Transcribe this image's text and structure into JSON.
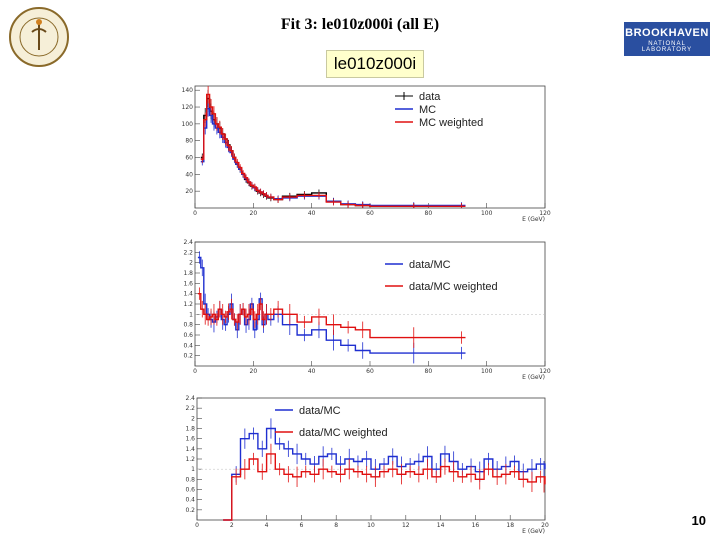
{
  "header": {
    "title": "Fit 3: le010z000i (all E)",
    "label_box": "le010z000i",
    "logo_bnl_line1": "BROOKHAVEN",
    "logo_bnl_line2": "NATIONAL LABORATORY",
    "page_number": "10"
  },
  "colors": {
    "data": "#000000",
    "mc": "#1f2fd0",
    "mc_weighted": "#e01010",
    "ratio_blue": "#1f2fd0",
    "ratio_red": "#e01010"
  },
  "chart_data": [
    {
      "type": "line",
      "name": "spectrum",
      "xlim": [
        0,
        120
      ],
      "ylim": [
        0,
        145
      ],
      "xticks": [
        0,
        20,
        40,
        60,
        80,
        100,
        120
      ],
      "yticks": [
        20,
        40,
        60,
        80,
        100,
        120,
        140
      ],
      "xlabel": "E (GeV)",
      "legend": [
        "data",
        "MC",
        "MC weighted"
      ],
      "bins_x": [
        2,
        3,
        4,
        5,
        6,
        7,
        8,
        9,
        10,
        11,
        12,
        13,
        14,
        15,
        16,
        17,
        18,
        19,
        20,
        21,
        22,
        23,
        24,
        25,
        27,
        30,
        35,
        40,
        45,
        50,
        55,
        60,
        90
      ],
      "series": [
        {
          "name": "data",
          "values": [
            60,
            110,
            130,
            115,
            105,
            100,
            95,
            88,
            82,
            75,
            68,
            60,
            52,
            46,
            40,
            34,
            30,
            26,
            24,
            20,
            18,
            16,
            14,
            12,
            10,
            14,
            16,
            18,
            8,
            4,
            3,
            2,
            2
          ]
        },
        {
          "name": "MC",
          "values": [
            55,
            95,
            118,
            110,
            100,
            95,
            90,
            84,
            78,
            72,
            66,
            58,
            52,
            46,
            40,
            35,
            31,
            27,
            24,
            21,
            19,
            17,
            15,
            13,
            11,
            12,
            14,
            14,
            8,
            5,
            4,
            3,
            3
          ]
        },
        {
          "name": "MC weighted",
          "values": [
            58,
            105,
            135,
            120,
            112,
            100,
            96,
            88,
            82,
            74,
            68,
            60,
            54,
            48,
            41,
            36,
            31,
            27,
            25,
            21,
            19,
            17,
            15,
            13,
            10,
            13,
            15,
            15,
            7,
            4,
            3,
            2,
            2
          ]
        }
      ]
    },
    {
      "type": "line",
      "name": "ratio_full",
      "xlim": [
        0,
        120
      ],
      "ylim": [
        0,
        2.4
      ],
      "xticks": [
        0,
        20,
        40,
        60,
        80,
        100,
        120
      ],
      "yticks": [
        0.2,
        0.4,
        0.6,
        0.8,
        1,
        1.2,
        1.4,
        1.6,
        1.8,
        2,
        2.2,
        2.4
      ],
      "xlabel": "E (GeV)",
      "legend": [
        "data/MC",
        "data/MC weighted"
      ],
      "bins_x": [
        1,
        2,
        3,
        4,
        5,
        6,
        7,
        8,
        9,
        10,
        11,
        12,
        13,
        14,
        15,
        16,
        17,
        18,
        19,
        20,
        21,
        22,
        23,
        24,
        25,
        27,
        30,
        35,
        40,
        45,
        50,
        55,
        60,
        90
      ],
      "series": [
        {
          "name": "data/MC",
          "values": [
            2.1,
            1.9,
            1.2,
            1.0,
            0.9,
            0.85,
            0.95,
            1.1,
            0.9,
            0.8,
            1.0,
            1.2,
            0.9,
            0.7,
            1.0,
            1.1,
            0.8,
            0.9,
            1.2,
            0.7,
            0.9,
            1.3,
            0.8,
            1.0,
            0.9,
            1.0,
            0.8,
            0.6,
            0.7,
            0.5,
            0.4,
            0.3,
            0.25,
            0.25
          ]
        },
        {
          "name": "data/MC weighted",
          "values": [
            1.4,
            1.1,
            1.0,
            0.9,
            0.95,
            1.0,
            0.9,
            1.1,
            1.0,
            0.95,
            1.05,
            1.1,
            0.9,
            0.85,
            1.0,
            1.1,
            0.95,
            1.0,
            1.1,
            0.9,
            1.0,
            1.2,
            0.9,
            1.0,
            1.0,
            1.1,
            1.0,
            0.85,
            0.95,
            0.8,
            0.75,
            0.7,
            0.55,
            0.55
          ]
        }
      ]
    },
    {
      "type": "line",
      "name": "ratio_zoom",
      "xlim": [
        0,
        20
      ],
      "ylim": [
        0,
        2.4
      ],
      "xticks": [
        0,
        2,
        4,
        6,
        8,
        10,
        12,
        14,
        16,
        18,
        20
      ],
      "yticks": [
        0.2,
        0.4,
        0.6,
        0.8,
        1,
        1.2,
        1.4,
        1.6,
        1.8,
        2,
        2.2,
        2.4
      ],
      "xlabel": "E (GeV)",
      "legend": [
        "data/MC",
        "data/MC weighted"
      ],
      "bins_x": [
        1.5,
        2,
        2.5,
        3,
        3.5,
        4,
        4.5,
        5,
        5.5,
        6,
        6.5,
        7,
        7.5,
        8,
        8.5,
        9,
        9.5,
        10,
        10.5,
        11,
        11.5,
        12,
        12.5,
        13,
        13.5,
        14,
        14.5,
        15,
        15.5,
        16,
        16.5,
        17,
        17.5,
        18,
        18.5,
        19,
        19.5,
        20
      ],
      "series": [
        {
          "name": "data/MC",
          "values": [
            0,
            0.9,
            1.6,
            1.7,
            1.4,
            1.8,
            1.5,
            1.4,
            1.3,
            1.2,
            1.1,
            1.25,
            1.3,
            1.1,
            1.2,
            1.15,
            1.2,
            1.0,
            1.1,
            1.25,
            1.05,
            1.1,
            1.15,
            1.25,
            1.0,
            1.3,
            1.15,
            1.0,
            1.05,
            0.95,
            1.2,
            1.0,
            1.05,
            1.15,
            0.95,
            1.0,
            1.1,
            1.0
          ]
        },
        {
          "name": "data/MC weighted",
          "values": [
            0,
            0.85,
            1.0,
            1.2,
            0.95,
            1.3,
            1.0,
            0.9,
            0.85,
            0.95,
            0.9,
            1.0,
            0.95,
            0.9,
            1.0,
            0.95,
            0.9,
            0.85,
            0.95,
            1.0,
            0.9,
            0.95,
            0.9,
            1.0,
            0.85,
            1.05,
            0.95,
            0.85,
            0.9,
            0.8,
            1.0,
            0.85,
            0.9,
            0.95,
            0.8,
            0.75,
            0.85,
            0.7
          ]
        }
      ]
    }
  ]
}
